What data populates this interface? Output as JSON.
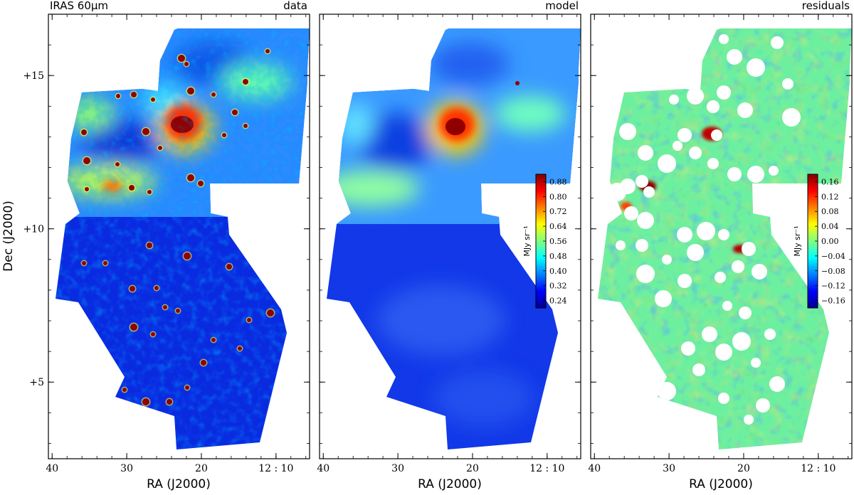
{
  "figure": {
    "y_axis_label": "Dec (J2000)",
    "x_axis_label": "RA (J2000)"
  },
  "chart_data": [
    {
      "type": "heatmap",
      "title_left": "IRAS 60μm",
      "title_right": "data",
      "xlabel": "RA (J2000)",
      "ylabel": "Dec (J2000)",
      "x_ticks": [
        "40",
        "30",
        "20",
        "12 : 10"
      ],
      "y_ticks": [
        "+15",
        "+10",
        "+5"
      ],
      "xlim": [
        40.5,
        5.5
      ],
      "ylim": [
        2.5,
        17
      ],
      "colormap": "jet",
      "colorbar": null,
      "features": [
        "bright dense core near RA 22, Dec +13.5",
        "point sources marked as dark red dots"
      ]
    },
    {
      "type": "heatmap",
      "title_right": "model",
      "xlabel": "RA (J2000)",
      "x_ticks": [
        "40",
        "30",
        "20",
        "12 : 10"
      ],
      "xlim": [
        40.5,
        5.5
      ],
      "ylim": [
        2.5,
        17
      ],
      "colormap": "jet",
      "colorbar": {
        "label": "MJy sr⁻¹",
        "ticks": [
          "0.88",
          "0.80",
          "0.72",
          "0.64",
          "0.56",
          "0.48",
          "0.40",
          "0.32",
          "0.24"
        ],
        "range": [
          0.2,
          0.92
        ]
      }
    },
    {
      "type": "heatmap",
      "title_right": "residuals",
      "xlabel": "RA (J2000)",
      "x_ticks": [
        "40",
        "30",
        "20",
        "12 : 10"
      ],
      "xlim": [
        40.5,
        5.5
      ],
      "ylim": [
        2.5,
        17
      ],
      "colormap": "jet",
      "colorbar": {
        "label": "MJy sr⁻¹",
        "ticks": [
          "0.16",
          "0.12",
          "0.08",
          "0.04",
          "0.00",
          "−0.04",
          "−0.08",
          "−0.12",
          "−0.16"
        ],
        "range": [
          -0.18,
          0.18
        ]
      },
      "masked_regions": "white circular masks over point sources"
    }
  ],
  "colors": {
    "jet_dark_blue": "#00008f",
    "jet_blue": "#0000ff",
    "jet_cyan": "#00ffff",
    "jet_yellow": "#ffff00",
    "jet_red": "#ff0000",
    "jet_dark_red": "#800000",
    "mask": "#ffffff"
  }
}
